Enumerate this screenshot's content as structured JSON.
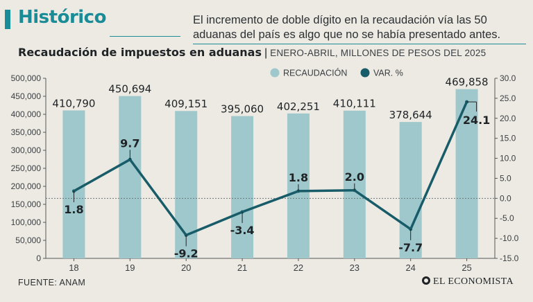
{
  "header": {
    "title": "Histórico",
    "description": "El incremento de doble dígito en la recaudación vía las 50 aduanas del país es algo que no se había presentado antes."
  },
  "chart_data": {
    "type": "bar",
    "title": "Recaudación de impuestos en aduanas",
    "subtitle": "ENERO-ABRIL, MILLONES DE PESOS DEL 2025",
    "categories": [
      "18",
      "19",
      "20",
      "21",
      "22",
      "23",
      "24",
      "25"
    ],
    "series": [
      {
        "name": "RECAUDACIÓN",
        "type": "bar",
        "axis": "left",
        "color": "#9fc8cc",
        "values": [
          410790,
          450694,
          409151,
          395060,
          402251,
          410111,
          378644,
          469858
        ],
        "labels": [
          "410,790",
          "450,694",
          "409,151",
          "395,060",
          "402,251",
          "410,111",
          "378,644",
          "469,858"
        ]
      },
      {
        "name": "VAR. %",
        "type": "line",
        "axis": "right",
        "color": "#175c68",
        "values": [
          1.8,
          9.7,
          -9.2,
          -3.4,
          1.8,
          2.0,
          -7.7,
          24.1
        ],
        "labels": [
          "1.8",
          "9.7",
          "-9.2",
          "-3.4",
          "1.8",
          "2.0",
          "-7.7",
          "24.1"
        ]
      }
    ],
    "left_axis": {
      "min": 0,
      "max": 500000,
      "ticks": [
        "500,000",
        "450,000",
        "400,000",
        "350,000",
        "300,000",
        "250,000",
        "200,000",
        "150,000",
        "100,000",
        "50,000",
        "0"
      ]
    },
    "right_axis": {
      "min": -15,
      "max": 30,
      "ticks": [
        "30.0",
        "25.0",
        "20.0",
        "15.0",
        "10.0",
        "5.0",
        "0.0",
        "-5.0",
        "-10.0",
        "-15.0"
      ]
    },
    "reference_line": 0,
    "legend_position": "top-right",
    "grid": false
  },
  "footer": {
    "source": "FUENTE: ANAM",
    "brand": "EL ECONOMISTA"
  }
}
